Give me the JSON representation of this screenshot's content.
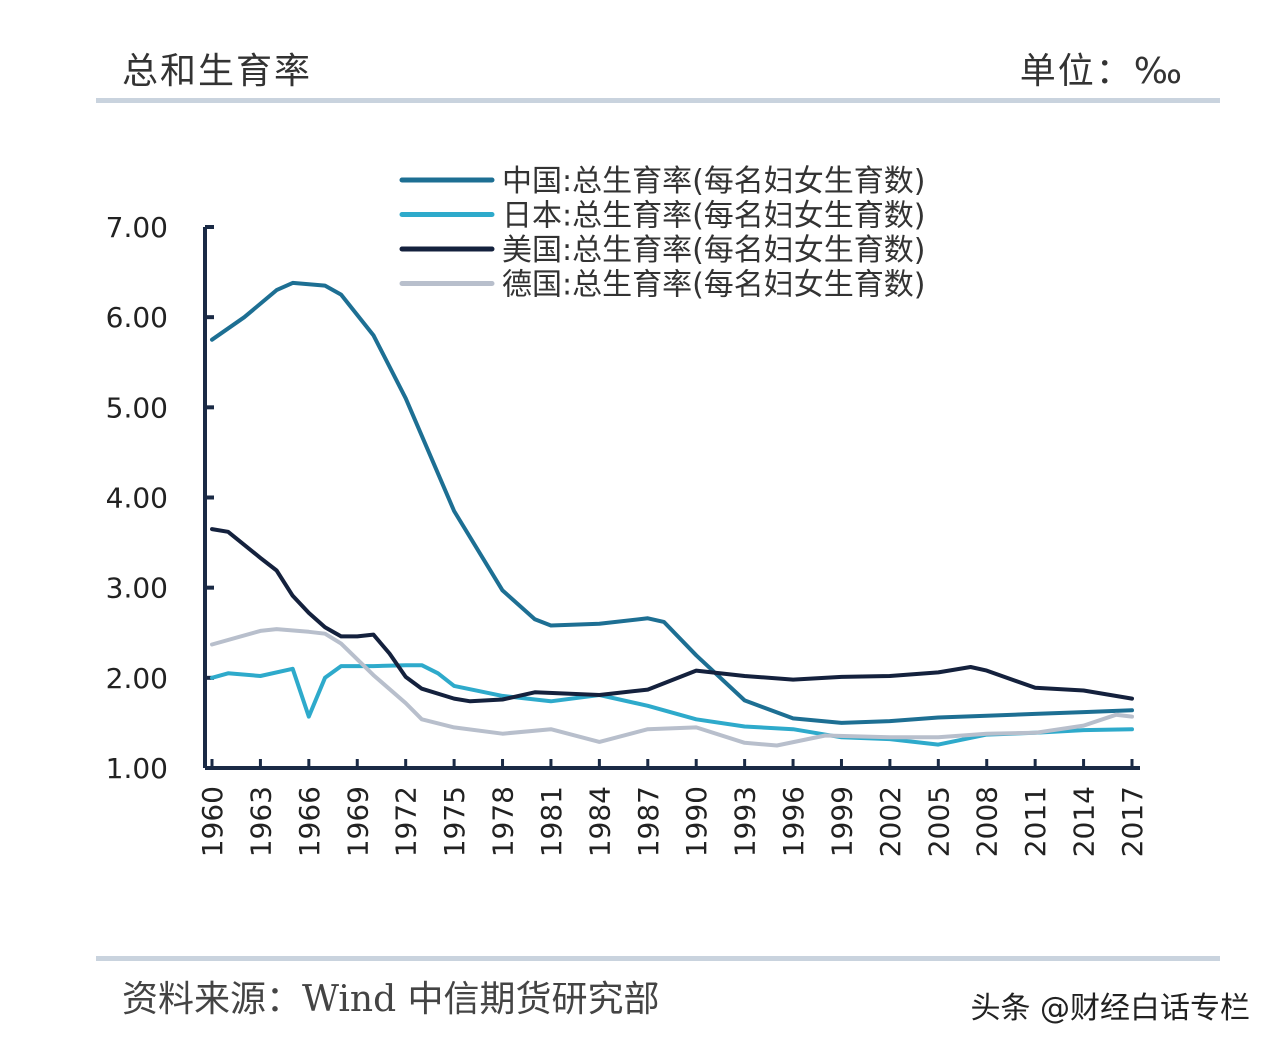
{
  "header": {
    "title": "总和生育率",
    "unit": "单位：‰"
  },
  "footer": {
    "source": "资料来源：Wind  中信期货研究部",
    "watermark": "头条 @财经白话专栏"
  },
  "chart_data": {
    "type": "line",
    "title": "总和生育率",
    "ylim": [
      1.0,
      7.0
    ],
    "xlim": [
      1960,
      2017
    ],
    "y_ticks": [
      "1.00",
      "2.00",
      "3.00",
      "4.00",
      "5.00",
      "6.00",
      "7.00"
    ],
    "x_ticks": [
      "1960",
      "1963",
      "1966",
      "1969",
      "1972",
      "1975",
      "1978",
      "1981",
      "1984",
      "1987",
      "1990",
      "1993",
      "1996",
      "1999",
      "2002",
      "2005",
      "2008",
      "2011",
      "2014",
      "2017"
    ],
    "grid": false,
    "legend": "top-center",
    "series": [
      {
        "name": "中国:总生育率(每名妇女生育数)",
        "color": "#1d6f93",
        "x": [
          1960,
          1962,
          1964,
          1965,
          1967,
          1968,
          1970,
          1972,
          1975,
          1978,
          1980,
          1981,
          1984,
          1987,
          1988,
          1990,
          1993,
          1996,
          1999,
          2002,
          2005,
          2008,
          2011,
          2014,
          2017
        ],
        "y": [
          5.75,
          6.0,
          6.3,
          6.38,
          6.35,
          6.25,
          5.8,
          5.1,
          3.85,
          2.97,
          2.65,
          2.58,
          2.6,
          2.66,
          2.62,
          2.25,
          1.75,
          1.55,
          1.5,
          1.52,
          1.56,
          1.58,
          1.6,
          1.62,
          1.64
        ]
      },
      {
        "name": "日本:总生育率(每名妇女生育数)",
        "color": "#2eaacb",
        "x": [
          1960,
          1961,
          1963,
          1965,
          1966,
          1967,
          1968,
          1970,
          1972,
          1973,
          1974,
          1975,
          1978,
          1981,
          1984,
          1987,
          1990,
          1993,
          1996,
          1999,
          2002,
          2005,
          2008,
          2011,
          2014,
          2017
        ],
        "y": [
          2.0,
          2.05,
          2.02,
          2.1,
          1.57,
          2.0,
          2.13,
          2.13,
          2.14,
          2.14,
          2.05,
          1.91,
          1.8,
          1.74,
          1.81,
          1.69,
          1.54,
          1.46,
          1.43,
          1.34,
          1.32,
          1.26,
          1.37,
          1.39,
          1.42,
          1.43
        ]
      },
      {
        "name": "美国:总生育率(每名妇女生育数)",
        "color": "#14213d",
        "x": [
          1960,
          1961,
          1963,
          1964,
          1965,
          1966,
          1967,
          1968,
          1969,
          1970,
          1971,
          1972,
          1973,
          1975,
          1976,
          1978,
          1980,
          1984,
          1987,
          1990,
          1993,
          1996,
          1999,
          2002,
          2005,
          2007,
          2008,
          2011,
          2014,
          2017
        ],
        "y": [
          3.65,
          3.62,
          3.33,
          3.19,
          2.91,
          2.72,
          2.56,
          2.46,
          2.46,
          2.48,
          2.27,
          2.01,
          1.88,
          1.77,
          1.74,
          1.76,
          1.84,
          1.81,
          1.87,
          2.08,
          2.02,
          1.98,
          2.01,
          2.02,
          2.06,
          2.12,
          2.08,
          1.89,
          1.86,
          1.77
        ]
      },
      {
        "name": "德国:总生育率(每名妇女生育数)",
        "color": "#b8bfcc",
        "x": [
          1960,
          1963,
          1964,
          1966,
          1967,
          1968,
          1970,
          1972,
          1973,
          1975,
          1978,
          1981,
          1984,
          1987,
          1990,
          1993,
          1995,
          1998,
          2002,
          2005,
          2008,
          2011,
          2014,
          2016,
          2017
        ],
        "y": [
          2.37,
          2.52,
          2.54,
          2.51,
          2.49,
          2.38,
          2.03,
          1.72,
          1.54,
          1.45,
          1.38,
          1.43,
          1.29,
          1.43,
          1.45,
          1.28,
          1.25,
          1.36,
          1.34,
          1.34,
          1.38,
          1.39,
          1.47,
          1.59,
          1.57
        ]
      }
    ]
  }
}
